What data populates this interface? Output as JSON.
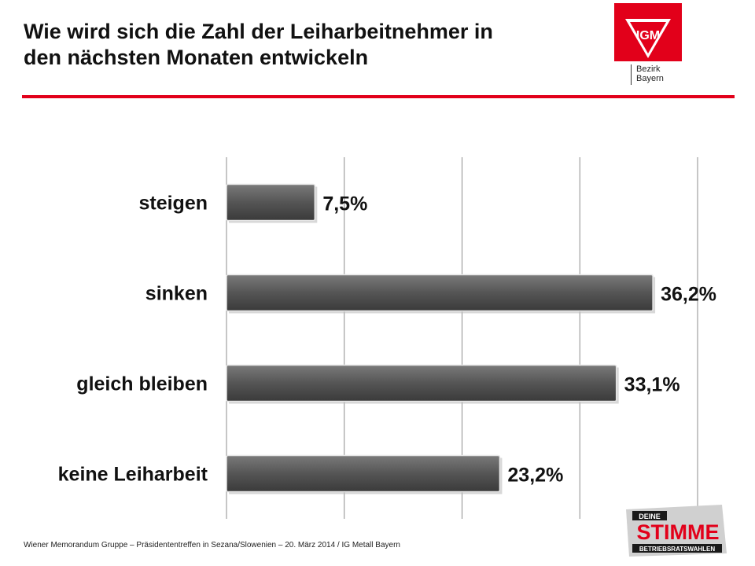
{
  "header": {
    "title_line1": "Wie wird sich die Zahl der Leiharbeitnehmer in",
    "title_line2": "den nächsten Monaten entwickeln",
    "logo_text": "IGM",
    "region_line1": "Bezirk",
    "region_line2": "Bayern",
    "accent_color": "#e2001a"
  },
  "chart_data": {
    "type": "bar",
    "orientation": "horizontal",
    "categories": [
      "steigen",
      "sinken",
      "gleich bleiben",
      "keine Leiharbeit"
    ],
    "values": [
      7.5,
      36.2,
      33.1,
      23.2
    ],
    "value_labels": [
      "7,5%",
      "36,2%",
      "33,1%",
      "23,2%"
    ],
    "xlim": [
      0,
      40
    ],
    "gridlines": [
      0,
      10,
      20,
      30,
      40
    ],
    "grid": true,
    "legend": false,
    "bar_color": "#555555"
  },
  "footer": {
    "text": "Wiener Memorandum Gruppe – Präsidententreffen in Sezana/Slowenien – 20. März 2014 /  IG Metall Bayern"
  },
  "badge": {
    "line1": "DEINE",
    "line2": "STIMME",
    "line3": "BETRIEBSRATSWAHLEN"
  }
}
